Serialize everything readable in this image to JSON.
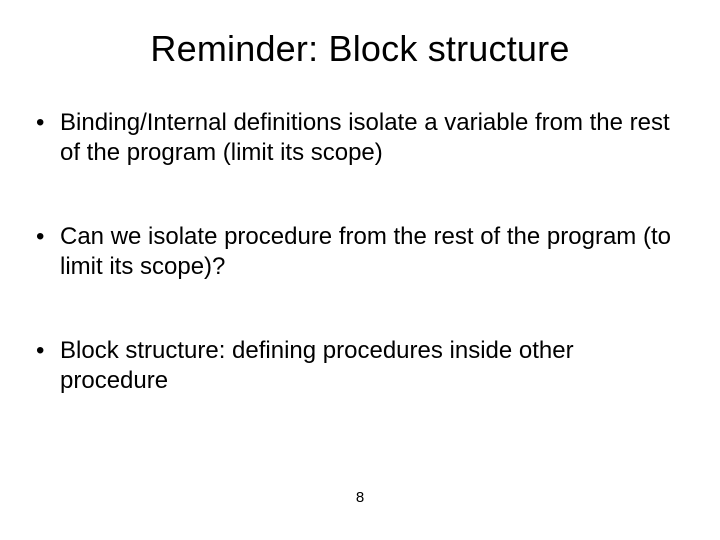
{
  "slide": {
    "title": "Reminder: Block structure",
    "title_fontsize": 36,
    "bullets": [
      "Binding/Internal definitions isolate a variable from the rest of the program (limit its scope)",
      "Can we isolate procedure from the rest of the program (to limit its scope)?",
      "Block structure: defining procedures inside other procedure"
    ],
    "bullet_fontsize": 24,
    "page_number": "8",
    "page_number_fontsize": 15,
    "background_color": "#ffffff",
    "text_color": "#000000",
    "font_family": "Arial"
  }
}
